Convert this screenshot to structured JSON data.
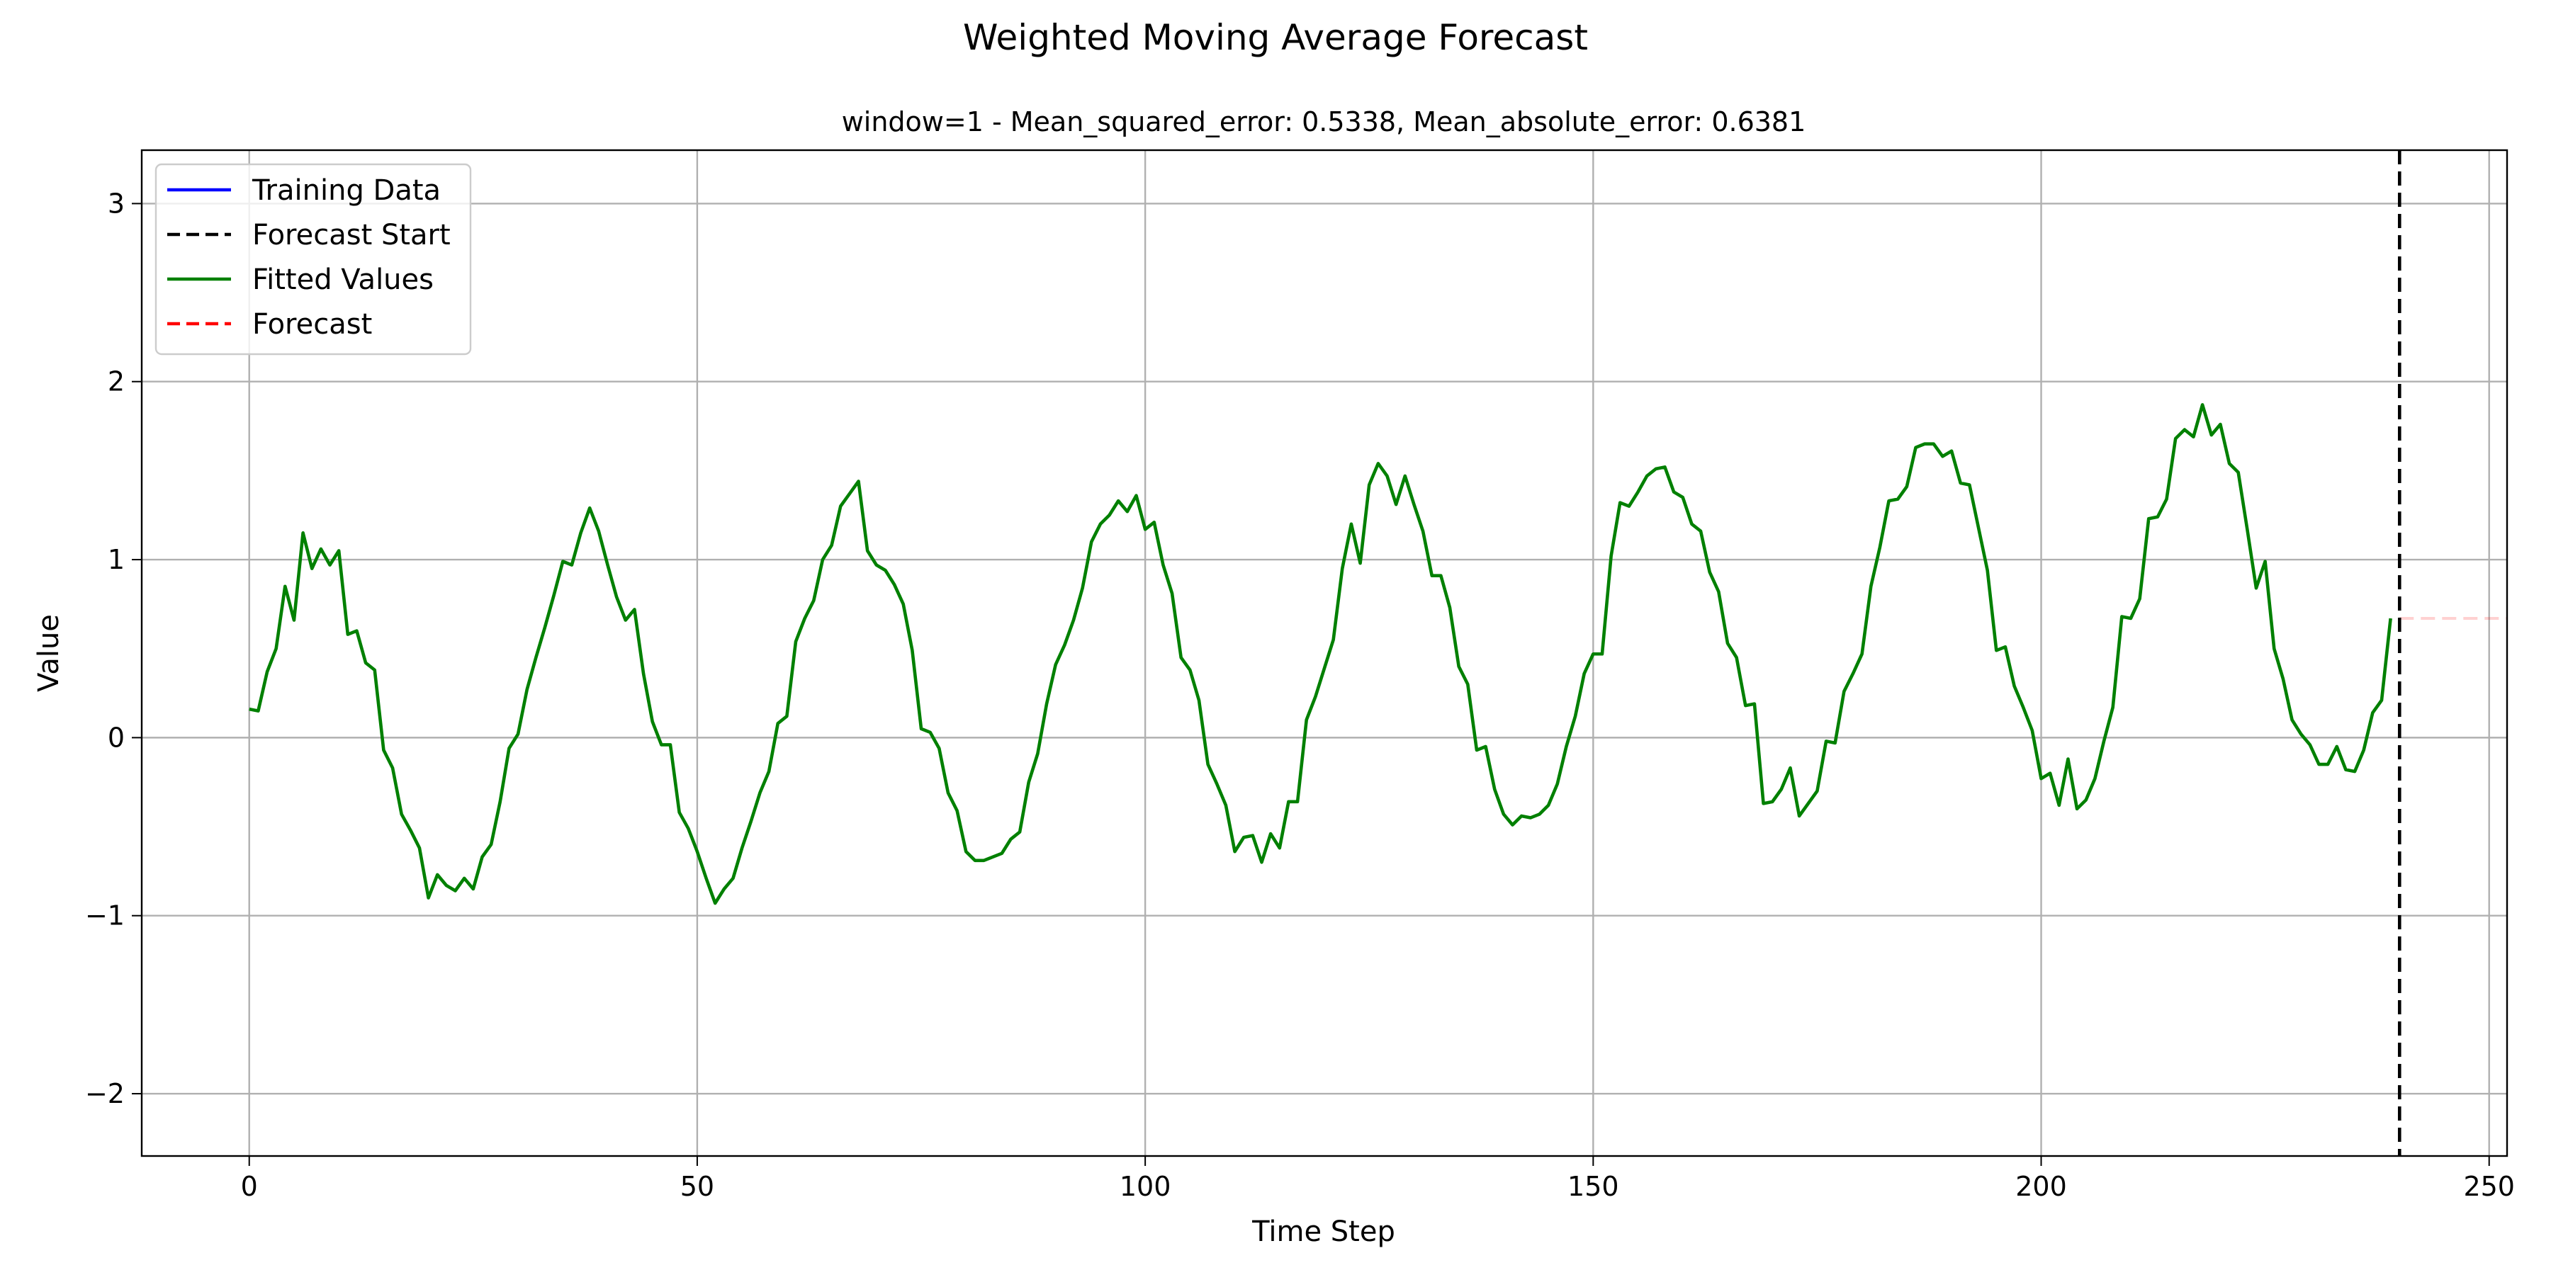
{
  "chart_data": {
    "type": "line",
    "title": "Weighted Moving Average Forecast",
    "subtitle": "window=1 - Mean_squared_error: 0.5338, Mean_absolute_error: 0.6381",
    "xlabel": "Time Step",
    "ylabel": "Value",
    "xlim": [
      -12,
      252
    ],
    "ylim": [
      -2.35,
      3.3
    ],
    "xticks": [
      0,
      50,
      100,
      150,
      200,
      250
    ],
    "yticks": [
      -2,
      -1,
      0,
      1,
      2,
      3
    ],
    "xtick_labels": [
      "0",
      "50",
      "100",
      "150",
      "200",
      "250"
    ],
    "ytick_labels": [
      "−2",
      "−1",
      "0",
      "1",
      "2",
      "3"
    ],
    "grid": true,
    "legend_position": "top-left",
    "legend": [
      {
        "label": "Training Data",
        "color": "#0000ff",
        "style": "solid"
      },
      {
        "label": "Forecast Start",
        "color": "#000000",
        "style": "dashed"
      },
      {
        "label": "Fitted Values",
        "color": "#008000",
        "style": "solid"
      },
      {
        "label": "Forecast",
        "color": "#ff0000",
        "style": "dashed"
      }
    ],
    "forecast_start_x": 240,
    "forecast": {
      "x_start": 240,
      "x_end": 252,
      "value": 0.67
    },
    "fitted_values": {
      "x_start": 0,
      "values": [
        0.16,
        0.15,
        0.37,
        0.5,
        0.85,
        0.66,
        1.15,
        0.95,
        1.06,
        0.97,
        1.05,
        0.58,
        0.6,
        0.42,
        0.38,
        -0.07,
        -0.17,
        -0.43,
        -0.52,
        -0.62,
        -0.9,
        -0.77,
        -0.83,
        -0.86,
        -0.79,
        -0.85,
        -0.67,
        -0.6,
        -0.36,
        -0.06,
        0.02,
        0.27,
        0.45,
        0.62,
        0.8,
        0.99,
        0.97,
        1.15,
        1.29,
        1.16,
        0.97,
        0.79,
        0.66,
        0.72,
        0.36,
        0.09,
        -0.04,
        -0.04,
        -0.42,
        -0.51,
        -0.64,
        -0.79,
        -0.93,
        -0.85,
        -0.79,
        -0.62,
        -0.47,
        -0.31,
        -0.19,
        0.08,
        0.12,
        0.54,
        0.67,
        0.77,
        1.0,
        1.08,
        1.3,
        1.37,
        1.44,
        1.05,
        0.97,
        0.94,
        0.86,
        0.75,
        0.49,
        0.05,
        0.03,
        -0.06,
        -0.31,
        -0.41,
        -0.64,
        -0.69,
        -0.69,
        -0.67,
        -0.65,
        -0.57,
        -0.53,
        -0.25,
        -0.09,
        0.19,
        0.41,
        0.52,
        0.66,
        0.84,
        1.1,
        1.2,
        1.25,
        1.33,
        1.27,
        1.36,
        1.17,
        1.21,
        0.97,
        0.81,
        0.45,
        0.38,
        0.21,
        -0.15,
        -0.26,
        -0.38,
        -0.64,
        -0.56,
        -0.55,
        -0.7,
        -0.54,
        -0.62,
        -0.36,
        -0.36,
        0.1,
        0.23,
        0.39,
        0.55,
        0.95,
        1.2,
        0.98,
        1.42,
        1.54,
        1.47,
        1.31,
        1.47,
        1.31,
        1.16,
        0.91,
        0.91,
        0.73,
        0.4,
        0.3,
        -0.07,
        -0.05,
        -0.29,
        -0.43,
        -0.49,
        -0.44,
        -0.45,
        -0.43,
        -0.38,
        -0.26,
        -0.05,
        0.12,
        0.36,
        0.47,
        0.47,
        1.02,
        1.32,
        1.3,
        1.38,
        1.47,
        1.51,
        1.52,
        1.38,
        1.35,
        1.2,
        1.16,
        0.93,
        0.82,
        0.53,
        0.45,
        0.18,
        0.19,
        -0.37,
        -0.36,
        -0.29,
        -0.17,
        -0.44,
        -0.37,
        -0.3,
        -0.02,
        -0.03,
        0.26,
        0.36,
        0.47,
        0.85,
        1.07,
        1.33,
        1.34,
        1.41,
        1.63,
        1.65,
        1.65,
        1.58,
        1.61,
        1.43,
        1.42,
        1.18,
        0.94,
        0.49,
        0.51,
        0.29,
        0.17,
        0.04,
        -0.23,
        -0.2,
        -0.38,
        -0.12,
        -0.4,
        -0.35,
        -0.23,
        -0.02,
        0.17,
        0.68,
        0.67,
        0.78,
        1.23,
        1.24,
        1.34,
        1.68,
        1.73,
        1.69,
        1.87,
        1.7,
        1.76,
        1.54,
        1.49,
        1.17,
        0.84,
        0.99,
        0.5,
        0.33,
        0.1,
        0.02,
        -0.04,
        -0.15,
        -0.15,
        -0.05,
        -0.18,
        -0.19,
        -0.07,
        0.14,
        0.21,
        0.67
      ]
    }
  }
}
